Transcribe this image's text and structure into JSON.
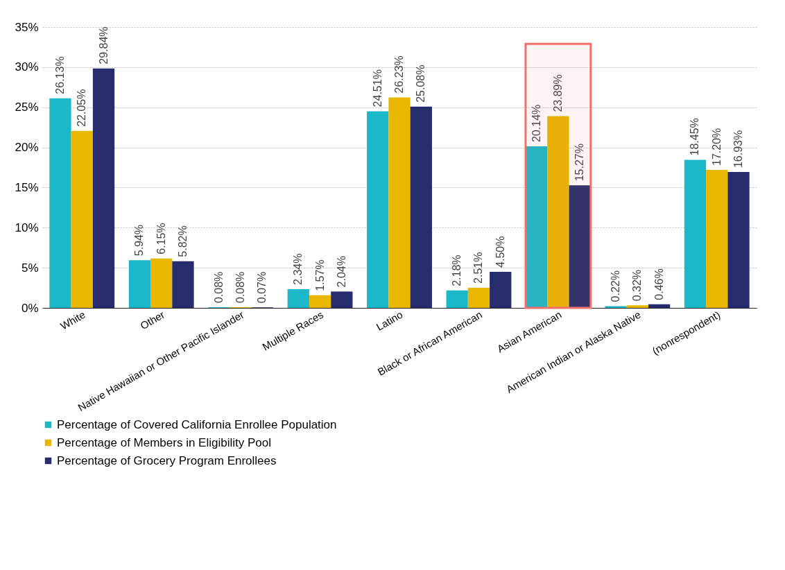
{
  "chart_data": {
    "type": "bar",
    "categories": [
      "White",
      "Other",
      "Native Hawaiian or Other Pacific Islander",
      "Multiple Races",
      "Latino",
      "Black or African American",
      "Asian American",
      "American Indian or Alaska Native",
      "(nonrespondent)"
    ],
    "series": [
      {
        "name": "Percentage of Covered California Enrollee Population",
        "color": "#1bb8c9",
        "values": [
          26.13,
          5.94,
          0.08,
          2.34,
          24.51,
          2.18,
          20.14,
          0.22,
          18.45
        ],
        "value_labels": [
          "26.13%",
          "5.94%",
          "0.08%",
          "2.34%",
          "24.51%",
          "2.18%",
          "20.14%",
          "0.22%",
          "18.45%"
        ]
      },
      {
        "name": "Percentage of Members in Eligibility Pool",
        "color": "#e9b600",
        "values": [
          22.05,
          6.15,
          0.08,
          1.57,
          26.23,
          2.51,
          23.89,
          0.32,
          17.2
        ],
        "value_labels": [
          "22.05%",
          "6.15%",
          "0.08%",
          "1.57%",
          "26.23%",
          "2.51%",
          "23.89%",
          "0.32%",
          "17.20%"
        ]
      },
      {
        "name": "Percentage of Grocery Program Enrollees",
        "color": "#272d6c",
        "values": [
          29.84,
          5.82,
          0.07,
          2.04,
          25.08,
          4.5,
          15.27,
          0.46,
          16.93
        ],
        "value_labels": [
          "29.84%",
          "5.82%",
          "0.07%",
          "2.04%",
          "25.08%",
          "4.50%",
          "15.27%",
          "0.46%",
          "16.93%"
        ]
      }
    ],
    "ylim": [
      0,
      35
    ],
    "yticks": [
      {
        "value": 0,
        "label": "0%"
      },
      {
        "value": 5,
        "label": "5%"
      },
      {
        "value": 10,
        "label": "10%"
      },
      {
        "value": 15,
        "label": "15%"
      },
      {
        "value": 20,
        "label": "20%"
      },
      {
        "value": 25,
        "label": "25%"
      },
      {
        "value": 30,
        "label": "30%"
      },
      {
        "value": 35,
        "label": "35%"
      }
    ],
    "grid": "y",
    "legend": "bottom",
    "bands": [
      {
        "axis": "x",
        "from": "Asian American",
        "to": "Asian American",
        "color": "#f0716b"
      }
    ]
  }
}
